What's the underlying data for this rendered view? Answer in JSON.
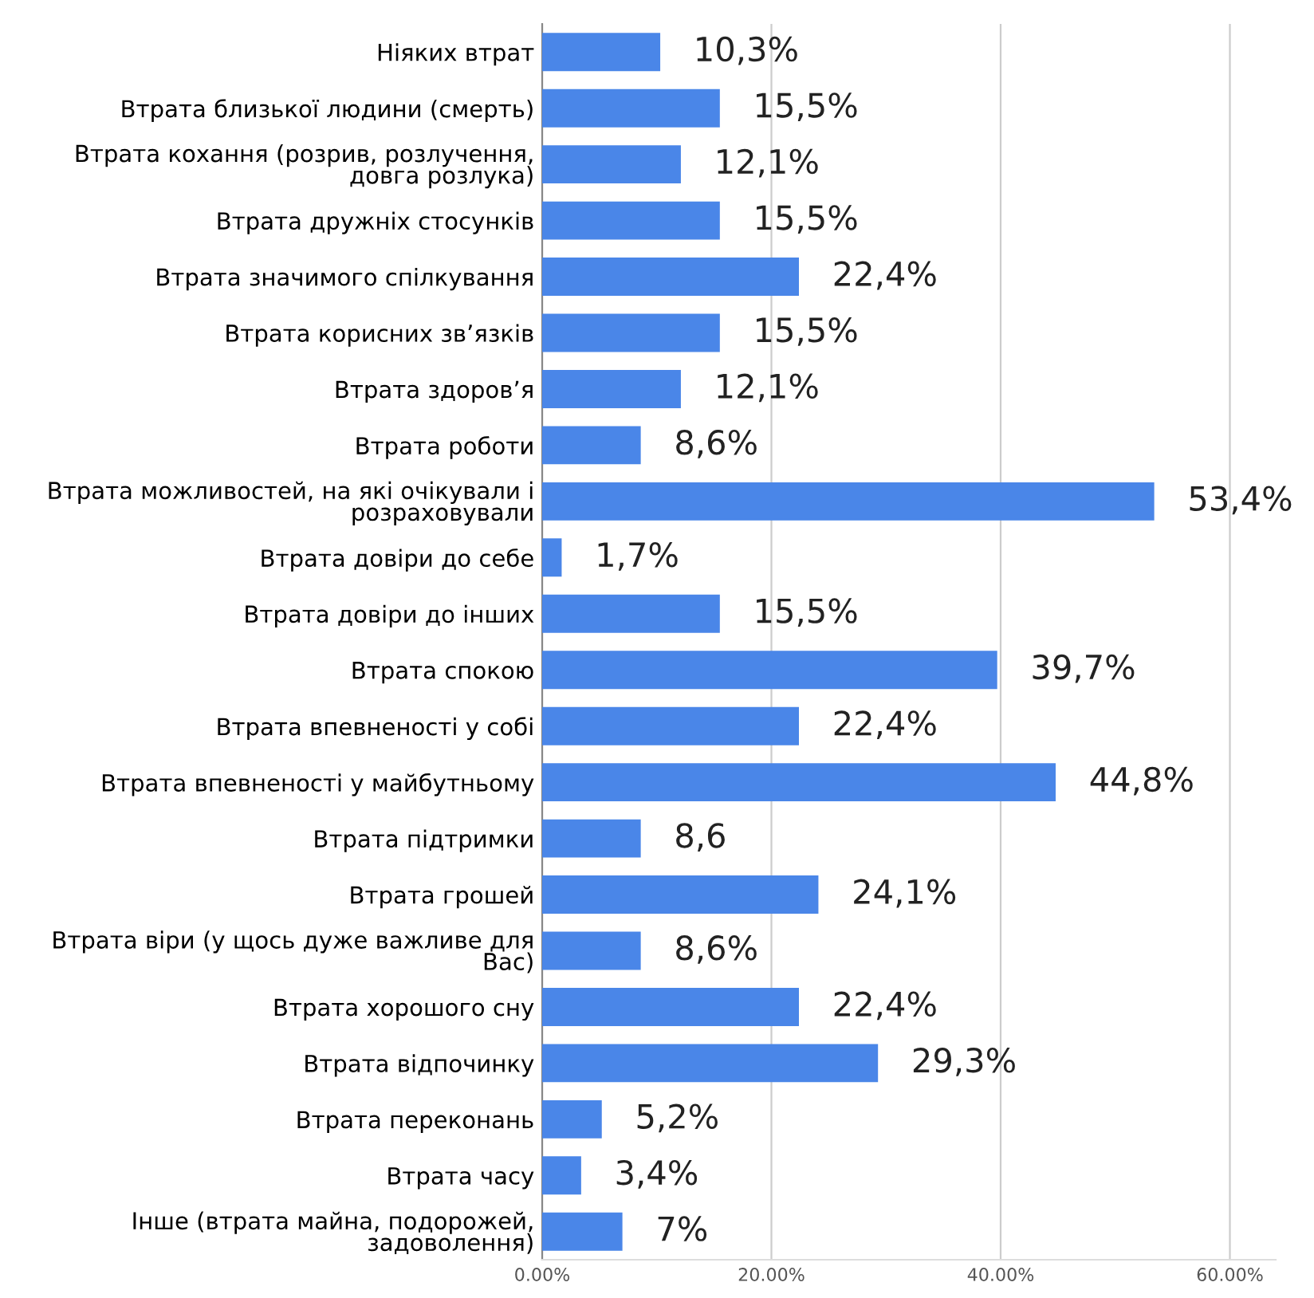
{
  "chart_data": {
    "type": "bar",
    "orientation": "horizontal",
    "color": "#4a86e8",
    "grid": "x",
    "categories": [
      "Ніяких втрат",
      "Втрата близької людини (смерть)",
      "Втрата кохання (розрив, розлучення,\nдовга розлука)",
      "Втрата дружніх стосунків",
      "Втрата значимого спілкування",
      "Втрата корисних зв’язків",
      "Втрата здоров’я",
      "Втрата роботи",
      "Втрата можливостей, на які очікували і\nрозраховували",
      "Втрата довіри до себе",
      "Втрата довіри до інших",
      "Втрата спокою",
      "Втрата впевненості у собі",
      "Втрата впевненості у майбутньому",
      "Втрата підтримки",
      "Втрата грошей",
      "Втрата віри (у щось дуже важливе для\nВас)",
      "Втрата хорошого сну",
      "Втрата відпочинку",
      "Втрата переконань",
      "Втрата часу",
      "Інше (втрата майна, подорожей,\nзадоволення)"
    ],
    "values": [
      10.3,
      15.5,
      12.1,
      15.5,
      22.4,
      15.5,
      12.1,
      8.6,
      53.4,
      1.7,
      15.5,
      39.7,
      22.4,
      44.8,
      8.6,
      24.1,
      8.6,
      22.4,
      29.3,
      5.2,
      3.4,
      7
    ],
    "value_labels": [
      "10,3%",
      "15,5%",
      "12,1%",
      "15,5%",
      "22,4%",
      "15,5%",
      "12,1%",
      "8,6%",
      "53,4%",
      "1,7%",
      "15,5%",
      "39,7%",
      "22,4%",
      "44,8%",
      "8,6",
      "24,1%",
      "8,6%",
      "22,4%",
      "29,3%",
      "5,2%",
      "3,4%",
      "7%"
    ],
    "xlim": [
      0,
      64
    ],
    "xticks": [
      {
        "value": 0,
        "label": "0.00%"
      },
      {
        "value": 20,
        "label": "20.00%"
      },
      {
        "value": 40,
        "label": "40.00%"
      },
      {
        "value": 60,
        "label": "60.00%"
      }
    ]
  }
}
